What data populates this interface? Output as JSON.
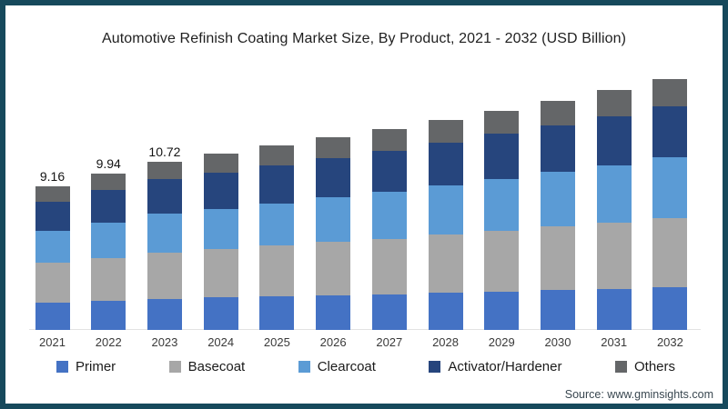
{
  "theme": {
    "frame_border_color": "#16495c",
    "axis_line_color": "#e2e2e2"
  },
  "header": {
    "title": "Automotive Refinish Coating Market Size, By Product, 2021 - 2032 (USD Billion)"
  },
  "footer": {
    "source": "Source: www.gminsights.com"
  },
  "chart_data": {
    "type": "bar",
    "stacked": true,
    "title": "Automotive Refinish Coating Market Size, By Product, 2021 - 2032 (USD Billion)",
    "xlabel": "",
    "ylabel": "USD Billion",
    "ylim": [
      0,
      17
    ],
    "grid": false,
    "legend_position": "bottom",
    "categories": [
      "2021",
      "2022",
      "2023",
      "2024",
      "2025",
      "2026",
      "2027",
      "2028",
      "2029",
      "2030",
      "2031",
      "2032"
    ],
    "series": [
      {
        "name": "Primer",
        "color": "#4472c4",
        "values": [
          1.72,
          1.85,
          1.98,
          2.06,
          2.13,
          2.21,
          2.28,
          2.38,
          2.45,
          2.54,
          2.63,
          2.73
        ]
      },
      {
        "name": "Basecoat",
        "color": "#a7a7a7",
        "values": [
          2.53,
          2.74,
          2.96,
          3.09,
          3.23,
          3.38,
          3.53,
          3.69,
          3.85,
          4.03,
          4.21,
          4.4
        ]
      },
      {
        "name": "Clearcoat",
        "color": "#5b9bd5",
        "values": [
          2.05,
          2.25,
          2.44,
          2.56,
          2.69,
          2.83,
          2.98,
          3.12,
          3.3,
          3.47,
          3.65,
          3.83
        ]
      },
      {
        "name": "Activator/Hardener",
        "color": "#26457d",
        "values": [
          1.88,
          2.04,
          2.2,
          2.3,
          2.4,
          2.51,
          2.62,
          2.74,
          2.86,
          2.99,
          3.12,
          3.27
        ]
      },
      {
        "name": "Others",
        "color": "#646668",
        "values": [
          0.98,
          1.06,
          1.14,
          1.19,
          1.26,
          1.3,
          1.37,
          1.43,
          1.5,
          1.56,
          1.63,
          1.7
        ]
      }
    ],
    "totals": [
      9.16,
      9.94,
      10.72,
      11.2,
      11.71,
      12.23,
      12.78,
      13.36,
      13.96,
      14.59,
      15.24,
      15.93
    ],
    "data_labels": {
      "2021": "9.16",
      "2022": "9.94",
      "2023": "10.72"
    }
  }
}
